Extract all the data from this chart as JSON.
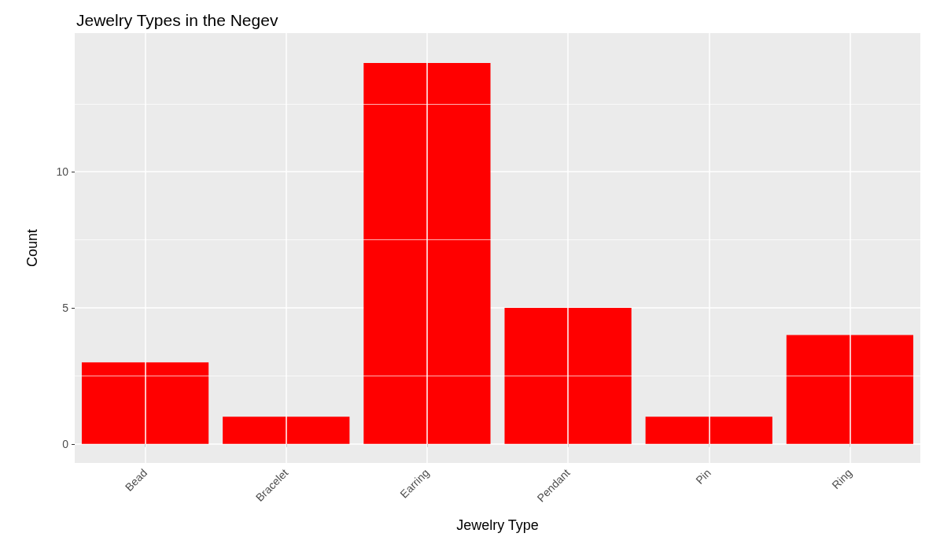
{
  "chart_data": {
    "type": "bar",
    "title": "Jewelry Types in the Negev",
    "xlabel": "Jewelry Type",
    "ylabel": "Count",
    "categories": [
      "Bead",
      "Bracelet",
      "Earring",
      "Pendant",
      "Pin",
      "Ring"
    ],
    "values": [
      3,
      1,
      14,
      5,
      1,
      4
    ],
    "color": "#ff0000",
    "ylim": [
      -0.7,
      15.1
    ],
    "yticks": [
      0,
      5,
      10
    ],
    "grid": true
  }
}
